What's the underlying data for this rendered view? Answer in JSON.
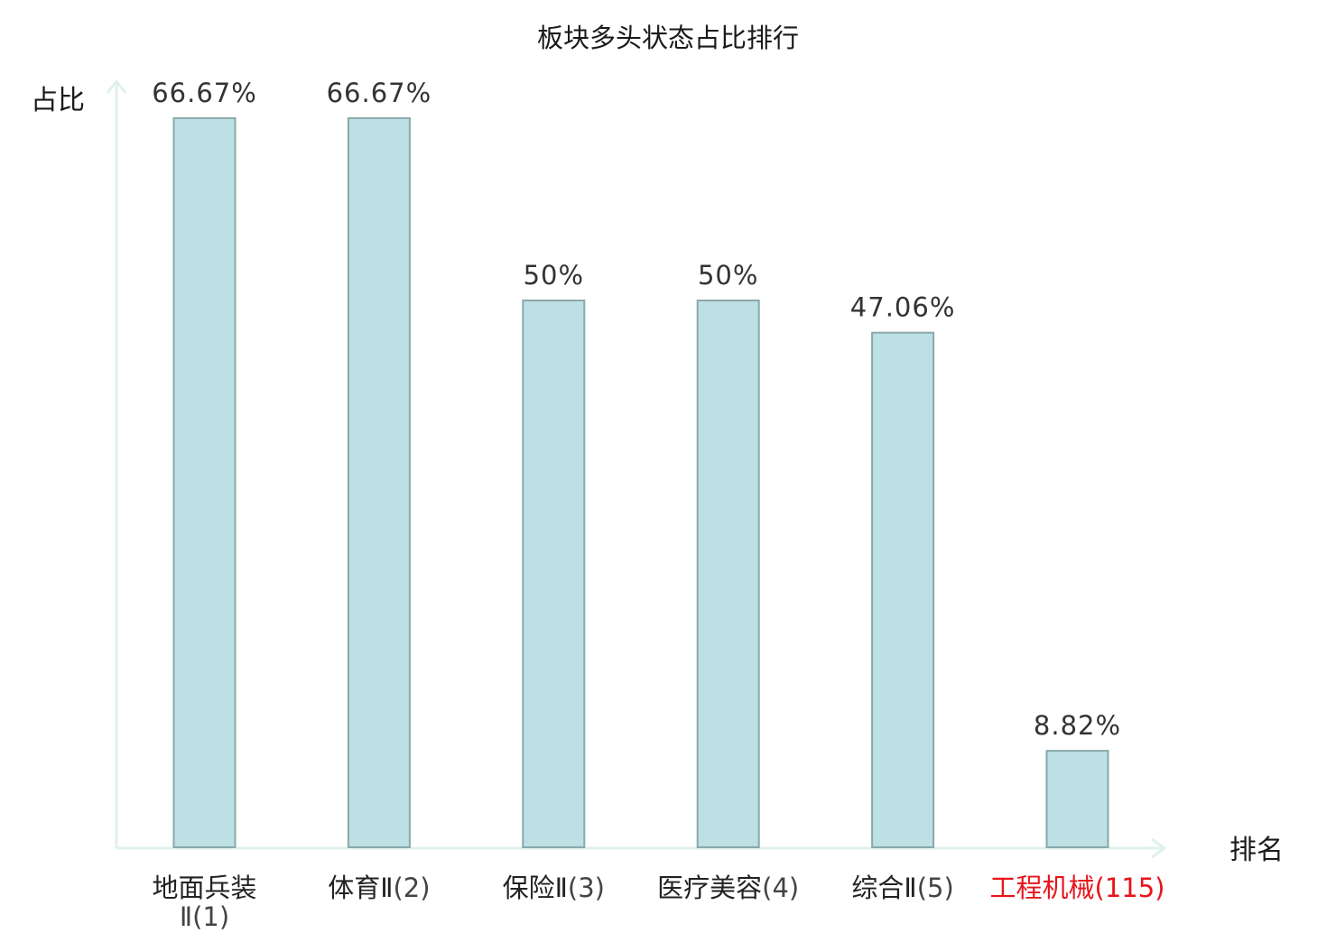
{
  "chart_data": {
    "type": "bar",
    "title": "板块多头状态占比排行",
    "ylabel": "占比",
    "xlabel": "排名",
    "ylim": [
      0,
      70
    ],
    "grid": false,
    "categories": [
      {
        "name": "地面兵装Ⅱ",
        "rank": "(1)",
        "highlight": false
      },
      {
        "name": "体育Ⅱ",
        "rank": "(2)",
        "highlight": false
      },
      {
        "name": "保险Ⅱ",
        "rank": "(3)",
        "highlight": false
      },
      {
        "name": "医疗美容",
        "rank": "(4)",
        "highlight": false
      },
      {
        "name": "综合Ⅱ",
        "rank": "(5)",
        "highlight": false
      },
      {
        "name": "工程机械",
        "rank": "(115)",
        "highlight": true
      }
    ],
    "values": [
      66.67,
      66.67,
      50,
      50,
      47.06,
      8.82
    ],
    "value_labels": [
      "66.67%",
      "66.67%",
      "50%",
      "50%",
      "47.06%",
      "8.82%"
    ],
    "colors": {
      "bar_fill": "#bce0e3",
      "bar_stroke": "#8aa9ab",
      "axis": "#dff1ef",
      "highlight_label": "#e8141a"
    }
  }
}
